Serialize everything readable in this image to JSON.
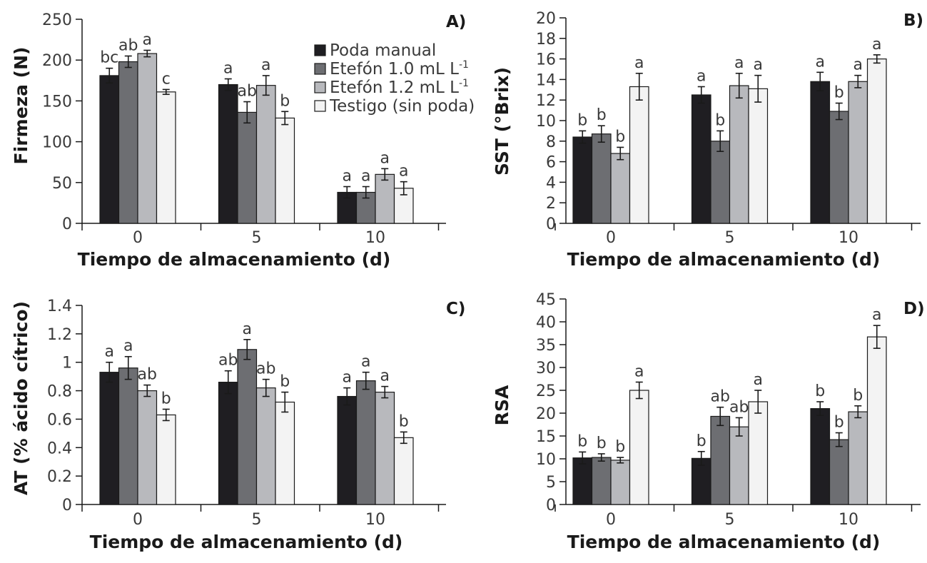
{
  "chart_data": [
    {
      "panel": "A)",
      "type": "bar",
      "xlabel": "Tiempo de almacenamiento (d)",
      "ylabel": "Firmeza (N)",
      "ylim": [
        0,
        250
      ],
      "yticks": [
        "0",
        "50",
        "100",
        "150",
        "200",
        "250"
      ],
      "categories": [
        "0",
        "5",
        "10"
      ],
      "series": [
        {
          "name": "Poda manual",
          "values": [
            181,
            170,
            38
          ],
          "errors": [
            9,
            7,
            7
          ],
          "labels": [
            "bc",
            "a",
            "a"
          ]
        },
        {
          "name": "Etefón 1.0 mL L-1",
          "values": [
            198,
            136,
            38
          ],
          "errors": [
            7,
            13,
            7
          ],
          "labels": [
            "ab",
            "ab",
            "a"
          ]
        },
        {
          "name": "Etefón 1.2 mL L-1",
          "values": [
            208,
            169,
            60
          ],
          "errors": [
            4,
            12,
            7
          ],
          "labels": [
            "a",
            "a",
            "a"
          ]
        },
        {
          "name": "Testigo (sin poda)",
          "values": [
            161,
            129,
            43
          ],
          "errors": [
            3,
            8,
            8
          ],
          "labels": [
            "c",
            "b",
            "a"
          ]
        }
      ]
    },
    {
      "panel": "B)",
      "type": "bar",
      "xlabel": "Tiempo de almacenamiento (d)",
      "ylabel": "SST (°Brix)",
      "ylim": [
        0,
        20
      ],
      "yticks": [
        "0",
        "2",
        "4",
        "6",
        "8",
        "10",
        "12",
        "14",
        "16",
        "18",
        "20"
      ],
      "categories": [
        "0",
        "5",
        "10"
      ],
      "series": [
        {
          "name": "Poda manual",
          "values": [
            8.4,
            12.5,
            13.8
          ],
          "errors": [
            0.6,
            0.8,
            0.9
          ],
          "labels": [
            "b",
            "a",
            "a"
          ]
        },
        {
          "name": "Etefón 1.0 mL L-1",
          "values": [
            8.7,
            8.0,
            10.9
          ],
          "errors": [
            0.8,
            1.0,
            0.8
          ],
          "labels": [
            "b",
            "b",
            "b"
          ]
        },
        {
          "name": "Etefón 1.2 mL L-1",
          "values": [
            6.8,
            13.4,
            13.8
          ],
          "errors": [
            0.6,
            1.2,
            0.6
          ],
          "labels": [
            "b",
            "a",
            "a"
          ]
        },
        {
          "name": "Testigo (sin poda)",
          "values": [
            13.3,
            13.1,
            16.0
          ],
          "errors": [
            1.3,
            1.3,
            0.4
          ],
          "labels": [
            "a",
            "a",
            "a"
          ]
        }
      ]
    },
    {
      "panel": "C)",
      "type": "bar",
      "xlabel": "Tiempo de almacenamiento (d)",
      "ylabel": "AT (% ácido cítrico)",
      "ylim": [
        0,
        1.4
      ],
      "yticks": [
        "0",
        "0.2",
        "0.4",
        "0.6",
        "0.8",
        "1",
        "1.2",
        "1.4"
      ],
      "categories": [
        "0",
        "5",
        "10"
      ],
      "series": [
        {
          "name": "Poda manual",
          "values": [
            0.93,
            0.86,
            0.76
          ],
          "errors": [
            0.07,
            0.08,
            0.06
          ],
          "labels": [
            "a",
            "ab",
            "a"
          ]
        },
        {
          "name": "Etefón 1.0 mL L-1",
          "values": [
            0.96,
            1.09,
            0.87
          ],
          "errors": [
            0.08,
            0.07,
            0.06
          ],
          "labels": [
            "a",
            "a",
            "a"
          ]
        },
        {
          "name": "Etefón 1.2 mL L-1",
          "values": [
            0.8,
            0.82,
            0.79
          ],
          "errors": [
            0.04,
            0.06,
            0.04
          ],
          "labels": [
            "ab",
            "ab",
            "a"
          ]
        },
        {
          "name": "Testigo (sin poda)",
          "values": [
            0.63,
            0.72,
            0.47
          ],
          "errors": [
            0.04,
            0.07,
            0.04
          ],
          "labels": [
            "b",
            "b",
            "b"
          ]
        }
      ]
    },
    {
      "panel": "D)",
      "type": "bar",
      "xlabel": "Tiempo de almacenamiento (d)",
      "ylabel": "RSA",
      "ylim": [
        0,
        45
      ],
      "yticks": [
        "0",
        "5",
        "10",
        "15",
        "20",
        "25",
        "30",
        "35",
        "40",
        "45"
      ],
      "categories": [
        "0",
        "5",
        "10"
      ],
      "series": [
        {
          "name": "Poda manual",
          "values": [
            10.2,
            10.1,
            21.0
          ],
          "errors": [
            1.3,
            1.5,
            1.5
          ],
          "labels": [
            "b",
            "b",
            "b"
          ]
        },
        {
          "name": "Etefón 1.0 mL L-1",
          "values": [
            10.3,
            19.3,
            14.2
          ],
          "errors": [
            0.8,
            2.0,
            1.5
          ],
          "labels": [
            "b",
            "ab",
            "b"
          ]
        },
        {
          "name": "Etefón 1.2 mL L-1",
          "values": [
            9.7,
            17.0,
            20.3
          ],
          "errors": [
            0.6,
            2.0,
            1.3
          ],
          "labels": [
            "b",
            "ab",
            "b"
          ]
        },
        {
          "name": "Testigo (sin poda)",
          "values": [
            25.0,
            22.5,
            36.7
          ],
          "errors": [
            1.8,
            2.5,
            2.5
          ],
          "labels": [
            "a",
            "a",
            "a"
          ]
        }
      ]
    }
  ],
  "legend": {
    "entries": [
      {
        "name": "Poda manual",
        "text": "Poda manual",
        "sup": ""
      },
      {
        "name": "Etefón 1.0 mL L-1",
        "text": "Etefón 1.0 mL L",
        "sup": "-1"
      },
      {
        "name": "Etefón 1.2 mL L-1",
        "text": "Etefón 1.2 mL L",
        "sup": "-1"
      },
      {
        "name": "Testigo (sin poda)",
        "text": "Testigo (sin poda)",
        "sup": ""
      }
    ]
  },
  "colors": {
    "series": [
      "#1f1e22",
      "#6d6e72",
      "#b8b9bd",
      "#f3f3f3"
    ],
    "stroke": "#1a1a1a",
    "text": "#3a3a3a"
  }
}
